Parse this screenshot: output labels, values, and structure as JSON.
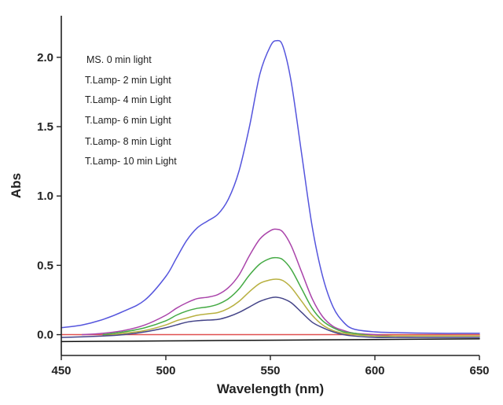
{
  "chart_data": {
    "type": "line",
    "title": "",
    "xlabel": "Wavelength (nm)",
    "ylabel": "Abs",
    "xlim": [
      450,
      650
    ],
    "ylim": [
      -0.15,
      2.3
    ],
    "x_ticks": [
      450,
      500,
      550,
      600,
      650
    ],
    "y_ticks": [
      0.0,
      0.5,
      1.0,
      1.5,
      2.0
    ],
    "x_tick_labels": [
      "450",
      "500",
      "550",
      "600",
      "650"
    ],
    "y_tick_labels": [
      "0.0",
      "0.5",
      "1.0",
      "1.5",
      "2.0"
    ],
    "grid": false,
    "legend_position": "top-left",
    "series": [
      {
        "name": "MS. 0 min light",
        "color": "#e05050",
        "x": [
          450,
          500,
          550,
          600,
          650
        ],
        "y": [
          0.0,
          0.0,
          0.0,
          0.0,
          0.0
        ]
      },
      {
        "name": "T.Lamp- 2 min Light",
        "color": "#5555dd",
        "x": [
          450,
          460,
          470,
          480,
          490,
          500,
          505,
          510,
          515,
          520,
          525,
          530,
          535,
          540,
          545,
          550,
          553,
          556,
          560,
          565,
          570,
          575,
          580,
          585,
          590,
          600,
          610,
          620,
          630,
          640,
          650
        ],
        "y": [
          0.05,
          0.07,
          0.11,
          0.17,
          0.25,
          0.42,
          0.55,
          0.68,
          0.77,
          0.82,
          0.87,
          0.98,
          1.18,
          1.5,
          1.88,
          2.08,
          2.12,
          2.08,
          1.82,
          1.3,
          0.78,
          0.42,
          0.2,
          0.09,
          0.04,
          0.02,
          0.015,
          0.012,
          0.01,
          0.01,
          0.01
        ]
      },
      {
        "name": "T.Lamp- 4 min Light",
        "color": "#aa44aa",
        "x": [
          460,
          470,
          480,
          490,
          500,
          505,
          510,
          515,
          520,
          525,
          530,
          535,
          540,
          545,
          550,
          553,
          556,
          560,
          565,
          570,
          575,
          580,
          585,
          590,
          600,
          610,
          620,
          630,
          640,
          650
        ],
        "y": [
          0.0,
          0.01,
          0.03,
          0.07,
          0.14,
          0.19,
          0.23,
          0.26,
          0.27,
          0.29,
          0.34,
          0.43,
          0.57,
          0.69,
          0.75,
          0.76,
          0.74,
          0.64,
          0.45,
          0.26,
          0.13,
          0.06,
          0.03,
          0.01,
          0.0,
          -0.01,
          -0.01,
          -0.01,
          -0.01,
          -0.01
        ]
      },
      {
        "name": "T.Lamp- 6 min Light",
        "color": "#44aa44",
        "x": [
          470,
          480,
          490,
          500,
          505,
          510,
          515,
          520,
          525,
          530,
          535,
          540,
          545,
          550,
          553,
          556,
          560,
          565,
          570,
          575,
          580,
          585,
          590,
          600,
          610,
          620,
          630,
          640,
          650
        ],
        "y": [
          0.0,
          0.02,
          0.05,
          0.1,
          0.14,
          0.17,
          0.19,
          0.2,
          0.22,
          0.26,
          0.33,
          0.43,
          0.51,
          0.55,
          0.555,
          0.54,
          0.47,
          0.33,
          0.19,
          0.1,
          0.05,
          0.02,
          0.01,
          -0.01,
          -0.01,
          -0.01,
          -0.01,
          -0.01,
          -0.01
        ]
      },
      {
        "name": "T.Lamp- 8 min Light",
        "color": "#b8b040",
        "x": [
          470,
          480,
          490,
          500,
          505,
          510,
          515,
          520,
          525,
          530,
          535,
          540,
          545,
          550,
          553,
          556,
          560,
          565,
          570,
          575,
          580,
          585,
          590,
          600,
          610,
          620,
          630,
          640,
          650
        ],
        "y": [
          -0.01,
          0.01,
          0.03,
          0.07,
          0.1,
          0.12,
          0.14,
          0.15,
          0.16,
          0.19,
          0.24,
          0.31,
          0.37,
          0.395,
          0.4,
          0.39,
          0.34,
          0.24,
          0.14,
          0.07,
          0.03,
          0.01,
          0.0,
          -0.01,
          -0.01,
          -0.01,
          -0.01,
          -0.01,
          -0.01
        ]
      },
      {
        "name": "T.Lamp- 10 min Light",
        "color": "#444488",
        "x": [
          450,
          470,
          480,
          490,
          500,
          505,
          510,
          515,
          520,
          525,
          530,
          535,
          540,
          545,
          550,
          553,
          556,
          560,
          565,
          570,
          575,
          580,
          585,
          590,
          600,
          610,
          620,
          630,
          640,
          650
        ],
        "y": [
          -0.02,
          -0.01,
          0.0,
          0.02,
          0.05,
          0.07,
          0.09,
          0.1,
          0.105,
          0.11,
          0.13,
          0.16,
          0.2,
          0.24,
          0.265,
          0.27,
          0.26,
          0.23,
          0.16,
          0.09,
          0.05,
          0.02,
          0.0,
          -0.01,
          -0.02,
          -0.02,
          -0.02,
          -0.02,
          -0.02,
          -0.02
        ]
      },
      {
        "name": "",
        "color": "#111111",
        "x": [
          450,
          500,
          550,
          600,
          650
        ],
        "y": [
          -0.05,
          -0.045,
          -0.04,
          -0.035,
          -0.03
        ]
      }
    ]
  }
}
